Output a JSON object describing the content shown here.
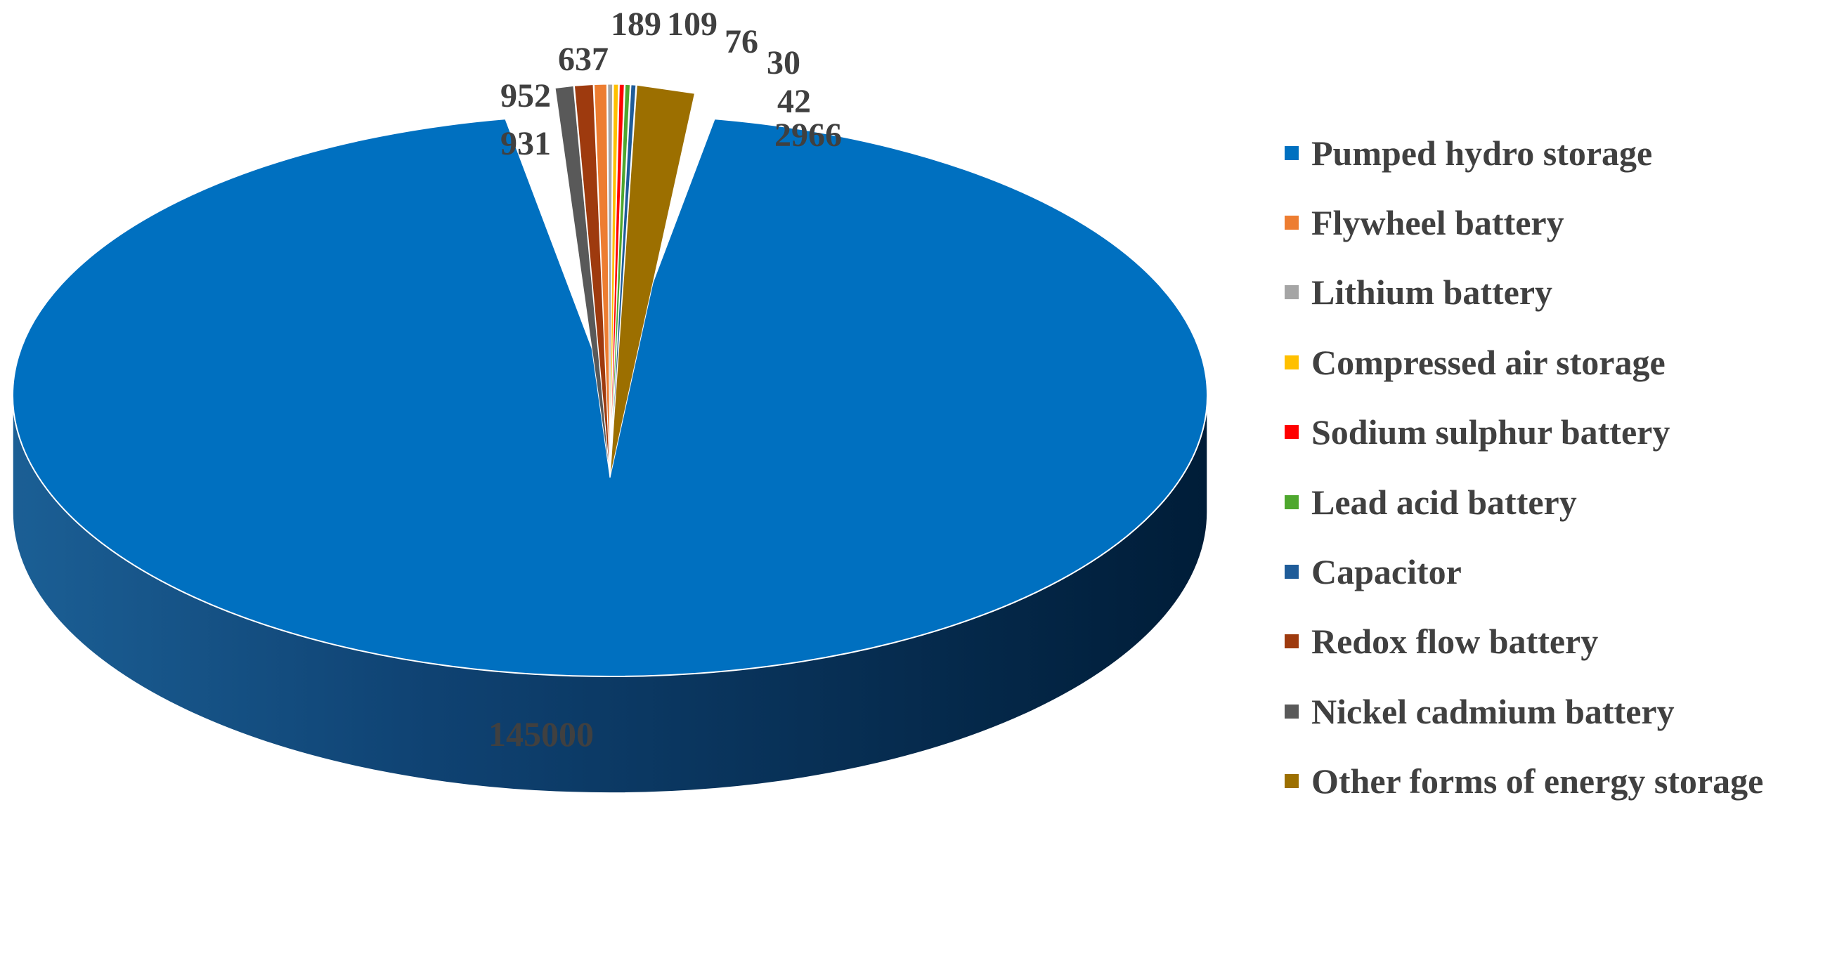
{
  "chart_data": {
    "type": "pie",
    "title": "",
    "categories": [
      "Pumped hydro storage",
      "Flywheel battery",
      "Lithium battery",
      "Compressed air storage",
      "Sodium sulphur battery",
      "Lead acid battery",
      "Capacitor",
      "Redox flow battery",
      "Nickel cadmium battery",
      "Other forms of energy storage"
    ],
    "values": [
      145000,
      637,
      189,
      109,
      76,
      30,
      42,
      952,
      931,
      2966
    ],
    "value_labels": [
      "145000",
      "637",
      "189",
      "109",
      "76",
      "30",
      "42",
      "952",
      "931",
      "2966"
    ],
    "colors": [
      "#0070C0",
      "#ED7D31",
      "#A5A5A5",
      "#FFC000",
      "#FF0000",
      "#4EA72E",
      "#1F5C99",
      "#9E3A0E",
      "#595959",
      "#9C6F00"
    ],
    "style": "3d-exploded",
    "legend_position": "right"
  }
}
